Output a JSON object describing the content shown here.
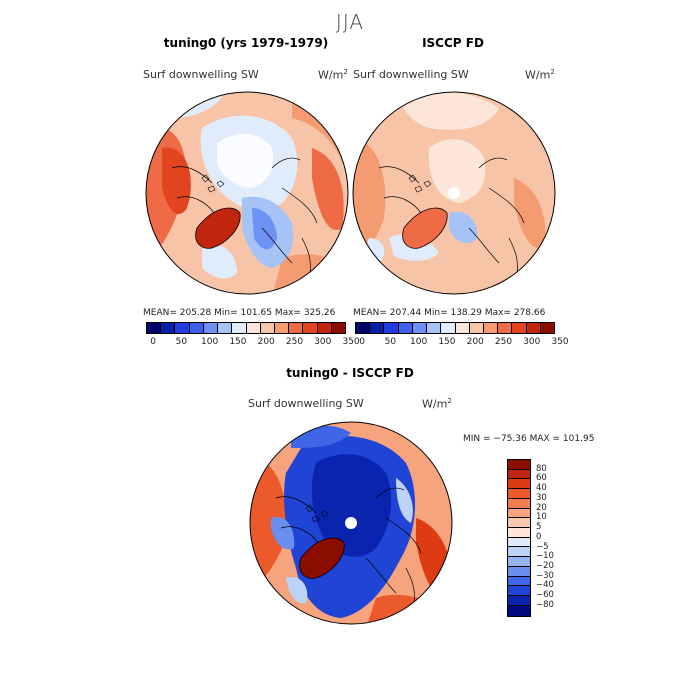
{
  "figure": {
    "title": "JJA"
  },
  "panels": [
    {
      "id": "tuning0",
      "title": "tuning0 (yrs 1979-1979)",
      "variable": "Surf downwelling SW",
      "unit_base": "W/m",
      "unit_exp": "2",
      "stats": "MEAN= 205.28   Min= 101.65   Max= 325.26"
    },
    {
      "id": "isccp",
      "title": "ISCCP FD",
      "variable": "Surf downwelling SW",
      "unit_base": "W/m",
      "unit_exp": "2",
      "stats": "MEAN= 207.44   Min= 138.29   Max= 278.66"
    },
    {
      "id": "diff",
      "title": "tuning0 - ISCCP FD",
      "variable": "Surf downwelling SW",
      "unit_base": "W/m",
      "unit_exp": "2",
      "stats": "MIN = −75.36  MAX = 101.95"
    }
  ],
  "colorbar_abs": {
    "colors": [
      "#00006a",
      "#0a1fa8",
      "#1f3fdc",
      "#3e62ee",
      "#6e92f4",
      "#a6c3f8",
      "#e0ecfb",
      "#fbe6d9",
      "#f8c4a7",
      "#f49b72",
      "#ee6b45",
      "#e0451f",
      "#c0250d",
      "#8a0d00"
    ],
    "labels": [
      "0",
      "50",
      "100",
      "150",
      "200",
      "250",
      "300",
      "350"
    ]
  },
  "colorbar_diff": {
    "colors": [
      "#8a0d00",
      "#c0250d",
      "#dd3c12",
      "#ec5a2c",
      "#f27e4f",
      "#f6a47e",
      "#f8c9ad",
      "#fbe6d9",
      "#e0ecfb",
      "#bcd3f8",
      "#93b3f5",
      "#6a8ff0",
      "#3f66e6",
      "#1f44d6",
      "#0a24b0",
      "#000a80"
    ],
    "labels": [
      "80",
      "60",
      "40",
      "30",
      "20",
      "10",
      "5",
      "0",
      "−5",
      "−10",
      "−20",
      "−30",
      "−40",
      "−60",
      "−80"
    ]
  }
}
